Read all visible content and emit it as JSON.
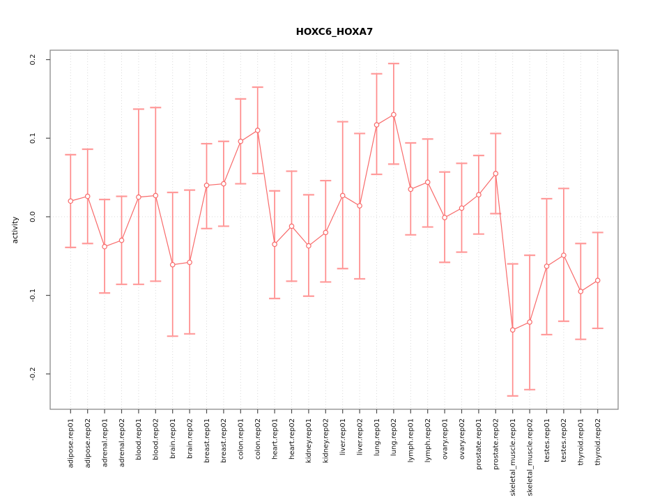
{
  "chart_data": {
    "type": "scatter",
    "subtype": "points-with-error-bars-connected-by-lines",
    "title": "HOXC6_HOXA7",
    "xlabel": "",
    "ylabel": "activity",
    "ylim": [
      -0.245,
      0.212
    ],
    "yticks": [
      0.2,
      0.1,
      0.0,
      -0.1,
      -0.2
    ],
    "ytick_labels": [
      "0.2",
      "0.1",
      "0.0",
      "-0.1",
      "-0.2"
    ],
    "grid": {
      "vertical_dotted_per_category": true,
      "horizontal_zero_line_dotted": true
    },
    "legend": "none",
    "colors": {
      "point": "#f86a6a",
      "connect_line": "#f86a6a",
      "error_bar": "#ff8b8b",
      "error_cap": "#ff9a9a",
      "grid_line": "#d9d9d9",
      "box_border": "#8a8a8a",
      "tick": "#4d4d4d"
    },
    "categories": [
      "adipose.rep01",
      "adipose.rep02",
      "adrenal.rep01",
      "adrenal.rep02",
      "blood.rep01",
      "blood.rep02",
      "brain.rep01",
      "brain.rep02",
      "breast.rep01",
      "breast.rep02",
      "colon.rep01",
      "colon.rep02",
      "heart.rep01",
      "heart.rep02",
      "kidney.rep01",
      "kidney.rep02",
      "liver.rep01",
      "liver.rep02",
      "lung.rep01",
      "lung.rep02",
      "lymph.rep01",
      "lymph.rep02",
      "ovary.rep01",
      "ovary.rep02",
      "prostate.rep01",
      "prostate.rep02",
      "skeletal_muscle.rep01",
      "skeletal_muscle.rep02",
      "testes.rep01",
      "testes.rep02",
      "thyroid.rep01",
      "thyroid.rep02"
    ],
    "series": [
      {
        "name": "HOXC6_HOXA7 activity",
        "values": [
          0.02,
          0.026,
          -0.038,
          -0.03,
          0.025,
          0.027,
          -0.061,
          -0.058,
          0.04,
          0.042,
          0.096,
          0.11,
          -0.035,
          -0.012,
          -0.037,
          -0.02,
          0.027,
          0.014,
          0.117,
          0.13,
          0.035,
          0.044,
          -0.001,
          0.011,
          0.028,
          0.055,
          -0.144,
          -0.134,
          -0.063,
          -0.049,
          -0.095,
          -0.081
        ],
        "upper": [
          0.079,
          0.086,
          0.022,
          0.026,
          0.137,
          0.139,
          0.031,
          0.034,
          0.093,
          0.096,
          0.15,
          0.165,
          0.033,
          0.058,
          0.028,
          0.046,
          0.121,
          0.106,
          0.182,
          0.195,
          0.094,
          0.099,
          0.057,
          0.068,
          0.078,
          0.106,
          -0.06,
          -0.049,
          0.023,
          0.036,
          -0.034,
          -0.02
        ],
        "lower": [
          -0.039,
          -0.034,
          -0.097,
          -0.086,
          -0.086,
          -0.082,
          -0.152,
          -0.149,
          -0.015,
          -0.012,
          0.042,
          0.055,
          -0.104,
          -0.082,
          -0.101,
          -0.083,
          -0.066,
          -0.079,
          0.054,
          0.067,
          -0.023,
          -0.013,
          -0.058,
          -0.045,
          -0.022,
          0.004,
          -0.228,
          -0.22,
          -0.15,
          -0.133,
          -0.156,
          -0.142
        ]
      }
    ]
  }
}
